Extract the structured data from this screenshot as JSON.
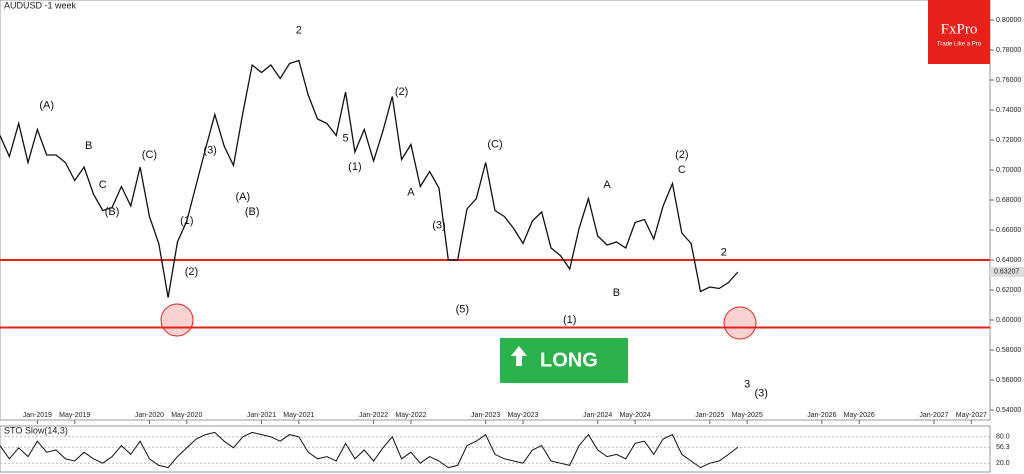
{
  "chart_data": {
    "type": "line",
    "title": "AUDUSD -1 week",
    "x": [
      -4,
      -3,
      -2,
      -1,
      0,
      1,
      2,
      3,
      4,
      5,
      6,
      7,
      8,
      9,
      10,
      11,
      12,
      13,
      14,
      15,
      16,
      17,
      18,
      19,
      20,
      21,
      22,
      23,
      24,
      25,
      26,
      27,
      28,
      29,
      30,
      31,
      32,
      33,
      34,
      35,
      36,
      37,
      38,
      39,
      40,
      41,
      42,
      43,
      44,
      45,
      46,
      47,
      48,
      49,
      50,
      51,
      52,
      53,
      54,
      55,
      56,
      57,
      58,
      59,
      60,
      61,
      62,
      63,
      64,
      65,
      66,
      67,
      68,
      69,
      70,
      71,
      72,
      73,
      74,
      75
    ],
    "series": [
      {
        "name": "AUDUSD",
        "color": "#111111",
        "values": [
          0.723,
          0.709,
          0.731,
          0.705,
          0.727,
          0.71,
          0.71,
          0.705,
          0.693,
          0.702,
          0.684,
          0.673,
          0.675,
          0.689,
          0.676,
          0.702,
          0.669,
          0.651,
          0.615,
          0.652,
          0.666,
          0.69,
          0.714,
          0.737,
          0.716,
          0.703,
          0.738,
          0.77,
          0.765,
          0.77,
          0.761,
          0.771,
          0.773,
          0.75,
          0.734,
          0.731,
          0.723,
          0.752,
          0.712,
          0.727,
          0.706,
          0.726,
          0.749,
          0.707,
          0.717,
          0.689,
          0.699,
          0.688,
          0.64,
          0.64,
          0.674,
          0.681,
          0.705,
          0.673,
          0.669,
          0.661,
          0.651,
          0.666,
          0.672,
          0.648,
          0.643,
          0.634,
          0.661,
          0.681,
          0.656,
          0.65,
          0.652,
          0.648,
          0.665,
          0.667,
          0.654,
          0.676,
          0.691,
          0.658,
          0.651,
          0.619,
          0.622,
          0.621,
          0.625,
          0.632
        ]
      }
    ],
    "xlim": [
      -4,
      102
    ],
    "ylim": [
      0.54,
      0.8
    ],
    "xticks": [
      {
        "value": 0,
        "label": "Jan-2019"
      },
      {
        "value": 4,
        "label": "May-2019"
      },
      {
        "value": 12,
        "label": "Jan-2020"
      },
      {
        "value": 16,
        "label": "May-2020"
      },
      {
        "value": 24,
        "label": "Jan-2021"
      },
      {
        "value": 28,
        "label": "May-2021"
      },
      {
        "value": 36,
        "label": "Jan-2022"
      },
      {
        "value": 40,
        "label": "May-2022"
      },
      {
        "value": 48,
        "label": "Jan-2023"
      },
      {
        "value": 52,
        "label": "May-2023"
      },
      {
        "value": 60,
        "label": "Jan-2024"
      },
      {
        "value": 64,
        "label": "May-2024"
      },
      {
        "value": 72,
        "label": "Jan-2025"
      },
      {
        "value": 76,
        "label": "May-2025"
      },
      {
        "value": 84,
        "label": "Jan-2026"
      },
      {
        "value": 88,
        "label": "May-2026"
      },
      {
        "value": 96,
        "label": "Jan-2027"
      },
      {
        "value": 100,
        "label": "May-2027"
      }
    ],
    "yticks": [
      {
        "value": 0.8,
        "label": "0.80000"
      },
      {
        "value": 0.78,
        "label": "0.78000"
      },
      {
        "value": 0.76,
        "label": "0.76000"
      },
      {
        "value": 0.74,
        "label": "0.74000"
      },
      {
        "value": 0.72,
        "label": "0.72000"
      },
      {
        "value": 0.7,
        "label": "0.70000"
      },
      {
        "value": 0.68,
        "label": "0.68000"
      },
      {
        "value": 0.66,
        "label": "0.66000"
      },
      {
        "value": 0.64,
        "label": "0.64000"
      },
      {
        "value": 0.62,
        "label": "0.62000"
      },
      {
        "value": 0.6,
        "label": "0.60000"
      },
      {
        "value": 0.58,
        "label": "0.58000"
      },
      {
        "value": 0.56,
        "label": "0.56000"
      },
      {
        "value": 0.54,
        "label": "0.54000"
      }
    ],
    "last_price": {
      "value": 0.63207,
      "label": "0.63207"
    },
    "hlines": [
      {
        "value": 0.64,
        "color": "#e8201c"
      },
      {
        "value": 0.595,
        "color": "#e8201c"
      }
    ],
    "signal": "LONG",
    "brand": {
      "name": "FxPro",
      "tagline": "Trade Like a Pro"
    },
    "annotations": [
      {
        "text": "(A)",
        "x": 1,
        "y": 0.743
      },
      {
        "text": "B",
        "x": 5.5,
        "y": 0.716
      },
      {
        "text": "C",
        "x": 7,
        "y": 0.69
      },
      {
        "text": "(B)",
        "x": 8,
        "y": 0.672
      },
      {
        "text": "(C)",
        "x": 12,
        "y": 0.71
      },
      {
        "text": "(1)",
        "x": 16,
        "y": 0.666
      },
      {
        "text": "(2)",
        "x": 16.5,
        "y": 0.632
      },
      {
        "text": "(3)",
        "x": 18.5,
        "y": 0.713
      },
      {
        "text": "(A)",
        "x": 22,
        "y": 0.682
      },
      {
        "text": "(B)",
        "x": 23,
        "y": 0.672
      },
      {
        "text": "2",
        "x": 28,
        "y": 0.793
      },
      {
        "text": "5",
        "x": 33,
        "y": 0.721
      },
      {
        "text": "(1)",
        "x": 34,
        "y": 0.702
      },
      {
        "text": "(2)",
        "x": 39,
        "y": 0.752
      },
      {
        "text": "A",
        "x": 40,
        "y": 0.685
      },
      {
        "text": "(3)",
        "x": 43,
        "y": 0.663
      },
      {
        "text": "(C)",
        "x": 49,
        "y": 0.717
      },
      {
        "text": "(5)",
        "x": 45.5,
        "y": 0.607
      },
      {
        "text": "(1)",
        "x": 57,
        "y": 0.6
      },
      {
        "text": "A",
        "x": 61,
        "y": 0.69
      },
      {
        "text": "B",
        "x": 62,
        "y": 0.618
      },
      {
        "text": "(2)",
        "x": 69,
        "y": 0.71
      },
      {
        "text": "C",
        "x": 69,
        "y": 0.7
      },
      {
        "text": "2",
        "x": 73.5,
        "y": 0.645
      },
      {
        "text": "3",
        "x": 76,
        "y": 0.557
      },
      {
        "text": "(3)",
        "x": 77.5,
        "y": 0.551
      }
    ],
    "oscillator": {
      "title": "STO Slow(14,3)",
      "ylim": [
        0,
        100
      ],
      "yticks": [
        {
          "value": 80,
          "label": "80.0"
        },
        {
          "value": 56.3,
          "label": "56.3"
        },
        {
          "value": 20,
          "label": "20.0"
        }
      ],
      "color": "#111111",
      "values": [
        60,
        30,
        55,
        35,
        70,
        45,
        50,
        30,
        25,
        45,
        30,
        20,
        35,
        60,
        40,
        70,
        30,
        15,
        10,
        35,
        55,
        75,
        85,
        90,
        70,
        55,
        80,
        90,
        85,
        80,
        70,
        85,
        80,
        45,
        30,
        35,
        25,
        65,
        30,
        50,
        25,
        55,
        80,
        30,
        45,
        20,
        35,
        25,
        10,
        15,
        60,
        70,
        85,
        40,
        30,
        25,
        20,
        50,
        60,
        25,
        20,
        15,
        60,
        85,
        50,
        35,
        40,
        30,
        65,
        70,
        40,
        75,
        85,
        40,
        25,
        10,
        20,
        25,
        40,
        56.3
      ]
    }
  }
}
